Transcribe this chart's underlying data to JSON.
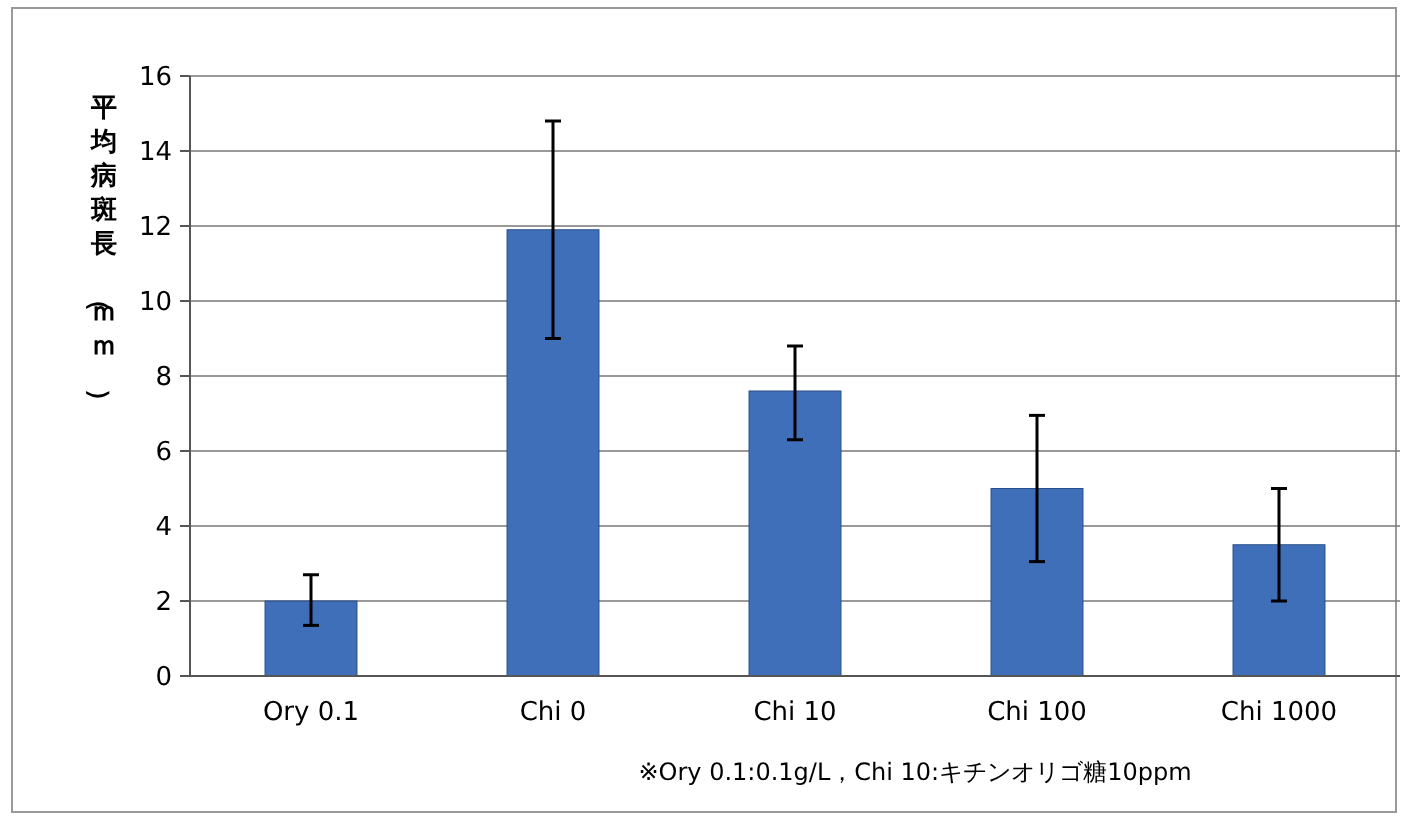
{
  "chart_data": {
    "type": "bar",
    "ylabel": "平均病斑長（ｍｍ）",
    "categories": [
      "Ory 0.1",
      "Chi 0",
      "Chi 10",
      "Chi 100",
      "Chi 1000"
    ],
    "values": [
      2.0,
      11.9,
      7.6,
      5.0,
      3.5
    ],
    "errors": [
      [
        1.35,
        2.7
      ],
      [
        9.0,
        14.8
      ],
      [
        6.3,
        8.8
      ],
      [
        3.05,
        6.95
      ],
      [
        2.0,
        5.0
      ]
    ],
    "color": "#3e6fb8",
    "ylim": [
      0,
      16
    ],
    "yticks": [
      0,
      2,
      4,
      6,
      8,
      10,
      12,
      14,
      16
    ],
    "grid": "y",
    "annotations": [
      "※Ory 0.1:0.1g/L，Chi 10:キチンオリゴ糖10ppm"
    ]
  }
}
